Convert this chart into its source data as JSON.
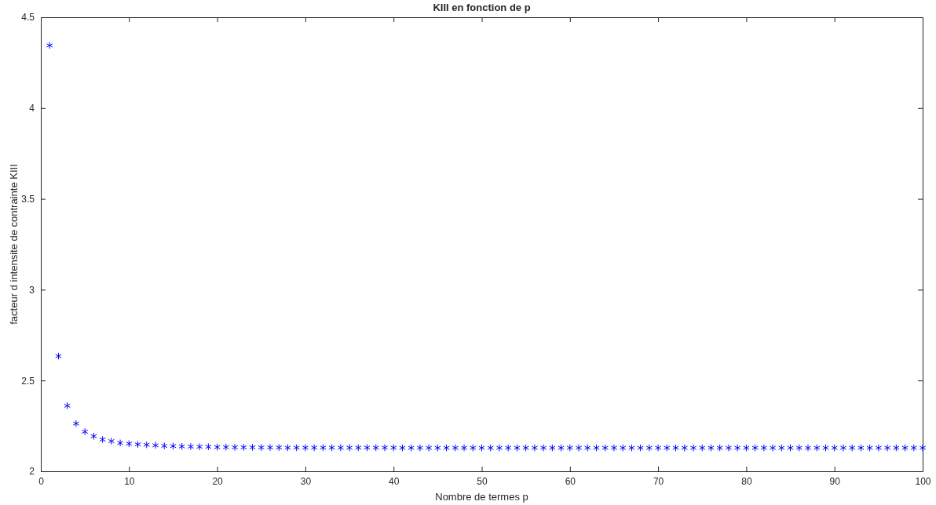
{
  "chart_data": {
    "type": "scatter",
    "title": "KIII en fonction de p",
    "xlabel": "Nombre de termes  p",
    "ylabel": "facteur d intensite de contrainte KIII",
    "x": [
      1,
      2,
      3,
      4,
      5,
      6,
      7,
      8,
      9,
      10,
      11,
      12,
      13,
      14,
      15,
      16,
      17,
      18,
      19,
      20,
      21,
      22,
      23,
      24,
      25,
      26,
      27,
      28,
      29,
      30,
      31,
      32,
      33,
      34,
      35,
      36,
      37,
      38,
      39,
      40,
      41,
      42,
      43,
      44,
      45,
      46,
      47,
      48,
      49,
      50,
      51,
      52,
      53,
      54,
      55,
      56,
      57,
      58,
      59,
      60,
      61,
      62,
      63,
      64,
      65,
      66,
      67,
      68,
      69,
      70,
      71,
      72,
      73,
      74,
      75,
      76,
      77,
      78,
      79,
      80,
      81,
      82,
      83,
      84,
      85,
      86,
      87,
      88,
      89,
      90,
      91,
      92,
      93,
      94,
      95,
      96,
      97,
      98,
      99,
      100
    ],
    "series": [
      {
        "color": "#0000ff",
        "values": [
          4.345,
          2.634,
          2.361,
          2.263,
          2.218,
          2.193,
          2.175,
          2.166,
          2.156,
          2.152,
          2.148,
          2.146,
          2.143,
          2.14,
          2.139,
          2.137,
          2.136,
          2.135,
          2.135,
          2.133,
          2.133,
          2.132,
          2.132,
          2.132,
          2.131,
          2.131,
          2.131,
          2.13,
          2.13,
          2.13,
          2.13,
          2.13,
          2.13,
          2.13,
          2.13,
          2.13,
          2.13,
          2.13,
          2.13,
          2.13,
          2.129,
          2.129,
          2.129,
          2.129,
          2.129,
          2.129,
          2.129,
          2.129,
          2.129,
          2.129,
          2.129,
          2.129,
          2.129,
          2.129,
          2.129,
          2.129,
          2.129,
          2.129,
          2.129,
          2.129,
          2.129,
          2.129,
          2.129,
          2.129,
          2.129,
          2.129,
          2.129,
          2.129,
          2.129,
          2.129,
          2.129,
          2.129,
          2.129,
          2.129,
          2.129,
          2.129,
          2.129,
          2.129,
          2.129,
          2.129,
          2.129,
          2.129,
          2.129,
          2.129,
          2.129,
          2.129,
          2.129,
          2.129,
          2.129,
          2.129,
          2.129,
          2.129,
          2.129,
          2.129,
          2.129,
          2.129,
          2.129,
          2.129,
          2.129,
          2.129
        ]
      }
    ],
    "xlim": [
      0,
      100
    ],
    "xticks": [
      0,
      10,
      20,
      30,
      40,
      50,
      60,
      70,
      80,
      90,
      100
    ],
    "ylim": [
      2,
      4.5
    ],
    "yticks": [
      2,
      2.5,
      3,
      3.5,
      4,
      4.5
    ],
    "marker": "cross",
    "grid": false
  }
}
